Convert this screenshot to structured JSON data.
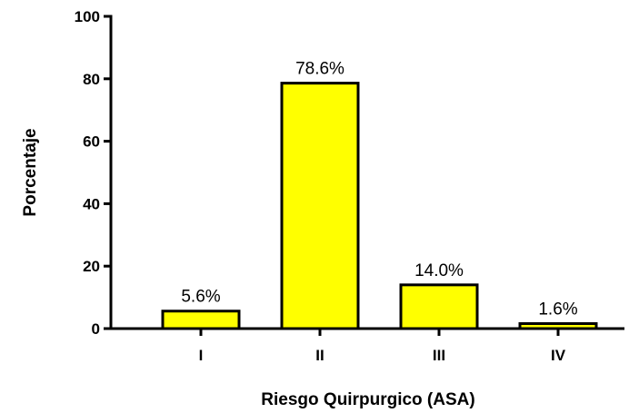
{
  "chart_data": {
    "type": "bar",
    "title": "",
    "xlabel": "Riesgo Quirpurgico (ASA)",
    "ylabel": "Porcentaje",
    "categories": [
      "I",
      "II",
      "III",
      "IV"
    ],
    "values": [
      5.6,
      78.6,
      14.0,
      1.6
    ],
    "data_labels": [
      "5.6%",
      "78.6%",
      "14.0%",
      "1.6%"
    ],
    "ylim": [
      0,
      100
    ],
    "yticks": [
      0,
      20,
      40,
      60,
      80,
      100
    ],
    "ytick_labels": [
      "0",
      "20",
      "40",
      "60",
      "80",
      "100"
    ],
    "grid": false,
    "legend": "none",
    "colors": {
      "bar_fill": "#FFFF00",
      "bar_stroke": "#000000",
      "axis": "#000000"
    }
  }
}
